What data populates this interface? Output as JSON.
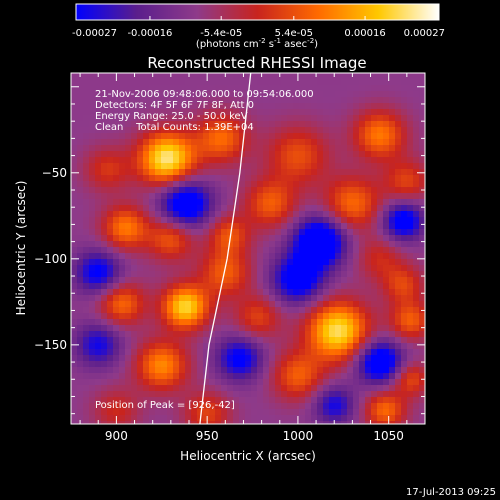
{
  "chart_data": {
    "type": "heatmap",
    "title": "Reconstructed RHESSI Image",
    "xlabel": "Heliocentric X (arcsec)",
    "ylabel": "Heliocentric Y (arcsec)",
    "xlim": [
      875,
      1070
    ],
    "ylim": [
      -196,
      8
    ],
    "x_ticks": [
      900,
      950,
      1000,
      1050
    ],
    "y_ticks": [
      -50,
      -100,
      -150
    ],
    "colorbar": {
      "range": [
        -0.00027,
        0.00027
      ],
      "ticks": [
        -0.00027,
        -0.00016,
        -5.4e-05,
        5.4e-05,
        0.00016,
        0.00027
      ],
      "tick_labels": [
        "-0.00027",
        "-0.00016",
        "-5.4e-05",
        "5.4e-05",
        "0.00016",
        "0.00027"
      ],
      "label_prefix": "(photons cm",
      "label_mid1": " s",
      "label_mid2": " asec",
      "label_suffix": ")",
      "sup1": "-2",
      "sup2": "-1",
      "sup3": "-2",
      "colors": [
        "#0000ff",
        "#5a1e8c",
        "#8e3a8a",
        "#c8241e",
        "#ff6a00",
        "#ffc800",
        "#ffffff"
      ]
    },
    "annotations": [
      "21-Nov-2006 09:48:06.000 to 09:54:06.000",
      "Detectors: 4F 5F 6F 7F 8F, Att 0",
      "Energy Range: 25.0 - 50.0 keV",
      "Clean    Total Counts: 1.39E+04"
    ],
    "peak_label": "Position of Peak = [926,-42]",
    "limb_curve": [
      [
        974,
        8
      ],
      [
        968,
        -50
      ],
      [
        961,
        -100
      ],
      [
        951,
        -150
      ],
      [
        946,
        -196
      ]
    ],
    "blobs": [
      {
        "x": 928,
        "y": -42,
        "v": 1.0,
        "s": 11
      },
      {
        "x": 958,
        "y": -30,
        "v": 0.55,
        "s": 10
      },
      {
        "x": 895,
        "y": -48,
        "v": 0.35,
        "s": 9
      },
      {
        "x": 1000,
        "y": -40,
        "v": 0.45,
        "s": 12
      },
      {
        "x": 1045,
        "y": -28,
        "v": 0.6,
        "s": 10
      },
      {
        "x": 1060,
        "y": -55,
        "v": 0.4,
        "s": 9
      },
      {
        "x": 938,
        "y": -68,
        "v": -0.8,
        "s": 10
      },
      {
        "x": 985,
        "y": -68,
        "v": 0.5,
        "s": 10
      },
      {
        "x": 1030,
        "y": -68,
        "v": 0.55,
        "s": 11
      },
      {
        "x": 1058,
        "y": -78,
        "v": -0.7,
        "s": 8
      },
      {
        "x": 905,
        "y": -82,
        "v": 0.6,
        "s": 9
      },
      {
        "x": 930,
        "y": -88,
        "v": 0.5,
        "s": 9
      },
      {
        "x": 962,
        "y": -86,
        "v": 0.45,
        "s": 8
      },
      {
        "x": 1012,
        "y": -90,
        "v": -0.9,
        "s": 10
      },
      {
        "x": 1045,
        "y": -100,
        "v": 0.3,
        "s": 9
      },
      {
        "x": 890,
        "y": -108,
        "v": -0.6,
        "s": 9
      },
      {
        "x": 960,
        "y": -108,
        "v": 0.5,
        "s": 10
      },
      {
        "x": 1000,
        "y": -112,
        "v": -0.7,
        "s": 10
      },
      {
        "x": 1058,
        "y": -115,
        "v": 0.4,
        "s": 8
      },
      {
        "x": 903,
        "y": -126,
        "v": 0.55,
        "s": 9
      },
      {
        "x": 938,
        "y": -128,
        "v": 0.9,
        "s": 9
      },
      {
        "x": 978,
        "y": -134,
        "v": 0.4,
        "s": 9
      },
      {
        "x": 1022,
        "y": -142,
        "v": 0.95,
        "s": 12
      },
      {
        "x": 1062,
        "y": -136,
        "v": 0.5,
        "s": 8
      },
      {
        "x": 890,
        "y": -150,
        "v": -0.5,
        "s": 9
      },
      {
        "x": 925,
        "y": -162,
        "v": 0.65,
        "s": 10
      },
      {
        "x": 968,
        "y": -158,
        "v": -0.6,
        "s": 9
      },
      {
        "x": 1000,
        "y": -168,
        "v": 0.5,
        "s": 10
      },
      {
        "x": 1045,
        "y": -160,
        "v": -0.8,
        "s": 9
      },
      {
        "x": 900,
        "y": -188,
        "v": 0.3,
        "s": 9
      },
      {
        "x": 950,
        "y": -190,
        "v": 0.4,
        "s": 9
      },
      {
        "x": 1048,
        "y": -188,
        "v": 0.55,
        "s": 8
      },
      {
        "x": 1062,
        "y": -170,
        "v": 0.45,
        "s": 7
      },
      {
        "x": 1020,
        "y": -185,
        "v": -0.5,
        "s": 8
      }
    ]
  },
  "footer": {
    "timestamp": "17-Jul-2013 09:25"
  }
}
